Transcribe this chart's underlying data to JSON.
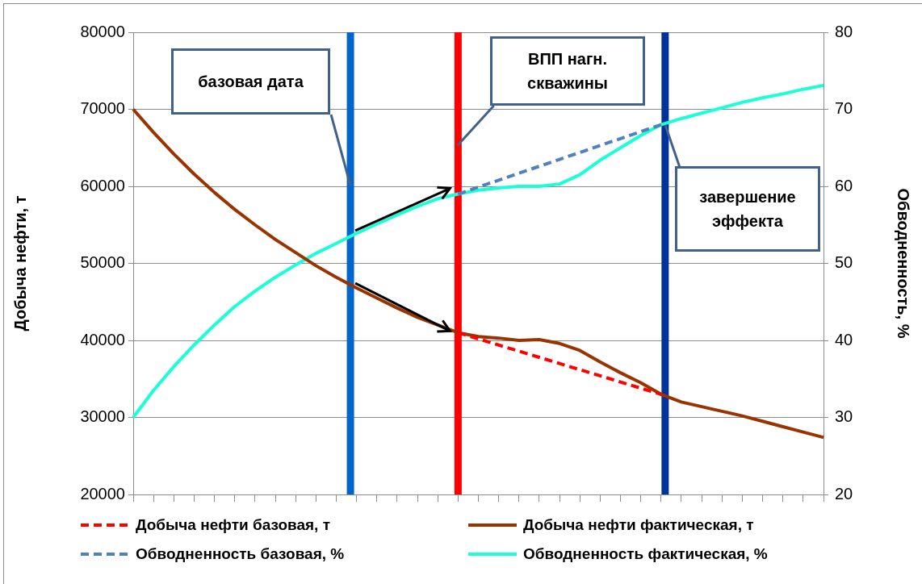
{
  "chart_data": {
    "type": "line",
    "ylabel": "Добыча нефти, т",
    "y2label": "Обводненность, %",
    "categories": [
      null,
      null,
      null,
      null,
      null,
      null,
      null,
      null,
      null,
      null,
      null,
      null,
      null,
      null,
      null,
      null,
      null,
      null,
      null,
      null,
      null,
      null,
      null,
      null,
      null,
      null,
      null,
      null,
      null,
      null,
      null,
      null,
      null,
      null,
      null
    ],
    "series": [
      {
        "name": "Добыча нефти базовая, т",
        "color": "#ff0000",
        "line_style": "dashed",
        "axis": "y",
        "values": [
          null,
          null,
          null,
          null,
          null,
          null,
          null,
          null,
          null,
          null,
          null,
          null,
          null,
          null,
          null,
          null,
          41000,
          40200,
          39400,
          38600,
          37800,
          37000,
          36200,
          35400,
          34600,
          33800,
          33000,
          null,
          null,
          null,
          null,
          null,
          null,
          null,
          null
        ]
      },
      {
        "name": "Добыча нефти фактическая, т",
        "color": "#993300",
        "line_style": "solid",
        "axis": "y",
        "values": [
          70000,
          67000,
          64200,
          61600,
          59200,
          57000,
          55000,
          53100,
          51400,
          49700,
          48200,
          46800,
          45500,
          44200,
          43000,
          42000,
          41000,
          40500,
          40300,
          40000,
          40100,
          39600,
          38700,
          37200,
          35800,
          34500,
          33000,
          32000,
          31400,
          30800,
          30200,
          29500,
          28800,
          28100,
          27400
        ]
      },
      {
        "name": "Обводненность базовая, %",
        "color": "#4f81bd",
        "line_style": "dashed",
        "axis": "y2",
        "values": [
          null,
          null,
          null,
          null,
          null,
          null,
          null,
          null,
          null,
          null,
          null,
          null,
          null,
          null,
          null,
          null,
          59.0,
          59.9,
          60.8,
          61.7,
          62.6,
          63.5,
          64.4,
          65.3,
          66.2,
          67.1,
          68.0,
          null,
          null,
          null,
          null,
          null,
          null,
          null,
          null
        ]
      },
      {
        "name": "Обводненность фактическая, %",
        "color": "#1affd5",
        "line_style": "solid",
        "axis": "y2",
        "values": [
          30,
          33.5,
          36.6,
          39.4,
          42.0,
          44.4,
          46.4,
          48.2,
          49.8,
          51.3,
          52.6,
          53.9,
          55.1,
          56.3,
          57.4,
          58.4,
          59.0,
          59.5,
          59.8,
          60.0,
          60.0,
          60.3,
          61.5,
          63.4,
          65.0,
          66.6,
          68.0,
          68.8,
          69.5,
          70.2,
          70.9,
          71.5,
          72.0,
          72.6,
          73.1
        ]
      }
    ],
    "ylim": [
      20000,
      80000
    ],
    "yticks": [
      20000,
      30000,
      40000,
      50000,
      60000,
      70000,
      80000
    ],
    "y2lim": [
      20,
      80
    ],
    "y2ticks": [
      20,
      30,
      40,
      50,
      60,
      70,
      80
    ],
    "ref_lines": [
      {
        "axis": "x",
        "label": "базовая дата",
        "color": "#0066cc"
      },
      {
        "axis": "x",
        "label": "ВПП нагн. скважины",
        "color": "#ff0000"
      },
      {
        "axis": "x",
        "label": "завершение эффекта",
        "color": "#003399"
      }
    ],
    "grid": "y",
    "legend": "bottom",
    "marker": "none"
  }
}
